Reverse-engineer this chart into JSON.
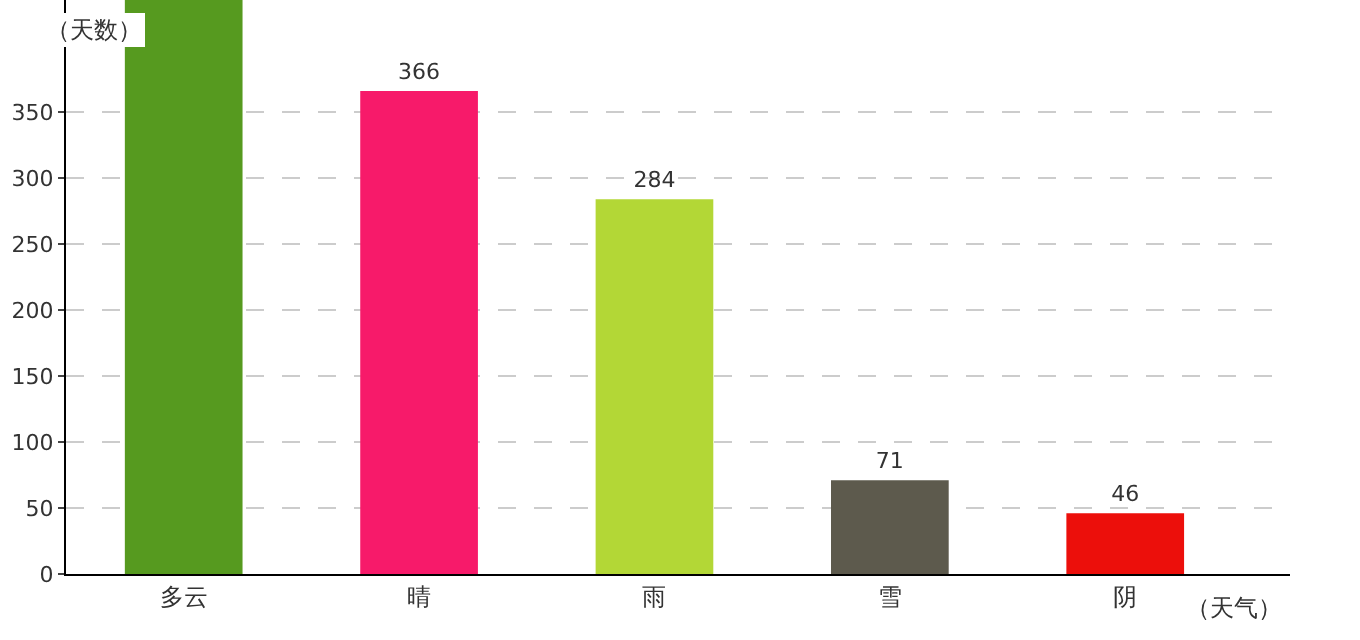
{
  "chart_data": {
    "type": "bar",
    "xlabel": "（天气）",
    "ylabel": "（天数）",
    "categories": [
      "多云",
      "晴",
      "雨",
      "雪",
      "阴"
    ],
    "values": [
      435,
      366,
      284,
      71,
      46
    ],
    "value_labels": [
      null,
      "366",
      "284",
      "71",
      "46"
    ],
    "colors": [
      "#569a1f",
      "#f71a6a",
      "#b3d736",
      "#5d5a4d",
      "#ec0f0b"
    ],
    "ylim": [
      0,
      435
    ],
    "yticks": [
      0,
      50,
      100,
      150,
      200,
      250,
      300,
      350
    ],
    "grid": "y"
  }
}
